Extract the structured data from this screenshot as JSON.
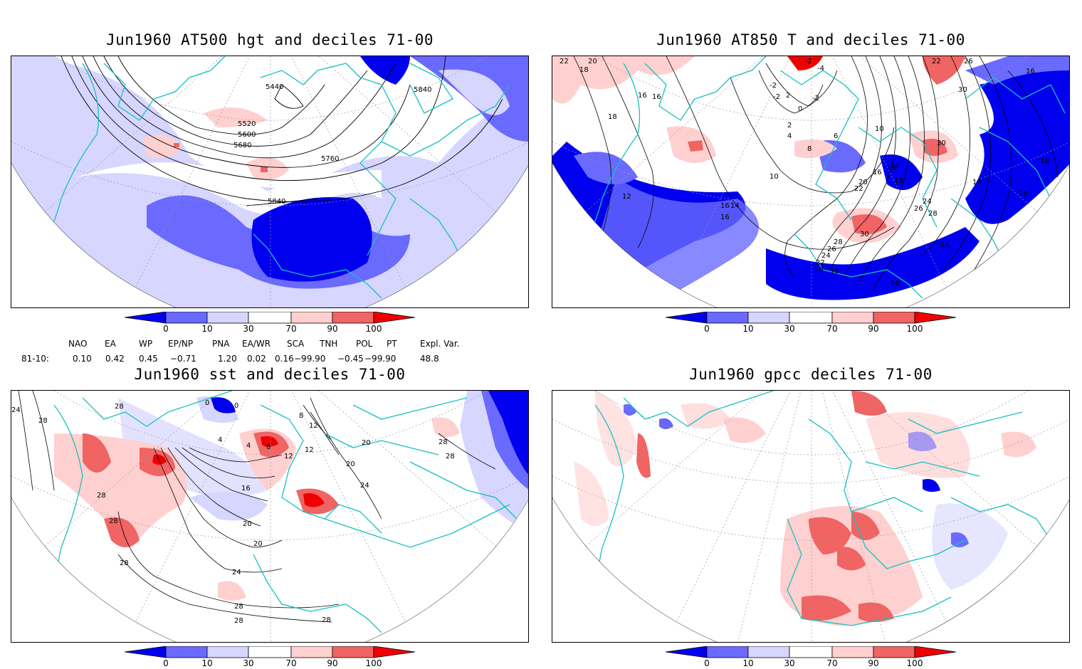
{
  "panels": [
    {
      "title": "Jun1960 AT500 hgt and deciles 71-00",
      "contour_labels": [
        "5440",
        "5520",
        "5600",
        "5680",
        "5760",
        "5840",
        "5840"
      ]
    },
    {
      "title": "Jun1960 AT850 T and deciles 71-00",
      "contour_labels": [
        "22",
        "20",
        "18",
        "16",
        "-2",
        "-4",
        "22",
        "26",
        "-2",
        "2",
        "-2",
        "0",
        "18",
        "16",
        "16",
        "30",
        "30",
        "-2",
        "2",
        "4",
        "6",
        "8",
        "10",
        "10",
        "14",
        "16",
        "18",
        "20",
        "22",
        "24",
        "26",
        "28",
        "30",
        "28",
        "26",
        "24",
        "22",
        "20",
        "18",
        "16",
        "14",
        "12",
        "16",
        "18",
        "14",
        "18",
        "16",
        "18",
        "16"
      ]
    },
    {
      "title": "Jun1960 sst and deciles 71-00",
      "contour_labels": [
        "24",
        "28",
        "28",
        "0",
        "0",
        "4",
        "8",
        "12",
        "12",
        "4",
        "8",
        "12",
        "16",
        "20",
        "20",
        "20",
        "24",
        "28",
        "28",
        "28",
        "28",
        "24",
        "20",
        "28",
        "28",
        "28",
        "28"
      ]
    },
    {
      "title": "Jun1960 gpcc deciles 71-00",
      "contour_labels": []
    }
  ],
  "colorbar": {
    "labels": [
      "0",
      "10",
      "30",
      "70",
      "90",
      "100"
    ],
    "colors": [
      "#0000ee",
      "#6a6aff",
      "#d6d6ff",
      "#ffffff",
      "#ffd0d0",
      "#f06464",
      "#ee0000"
    ]
  },
  "indices": {
    "headers": [
      "NAO",
      "EA",
      "WP",
      "EP/NP",
      "PNA",
      "EA/WR",
      "SCA",
      "TNH",
      "POL",
      "PT",
      "Expl. Var."
    ],
    "row_label": "81-10:",
    "values": [
      "0.10",
      "0.42",
      "0.45",
      "−0.71",
      "1.20",
      "0.02",
      "0.16",
      "−99.90",
      "−0.45",
      "−99.90",
      "48.8"
    ]
  },
  "colors": {
    "coast": "#17c0c0",
    "contour": "#000000",
    "grid": "#9a9a9a"
  }
}
